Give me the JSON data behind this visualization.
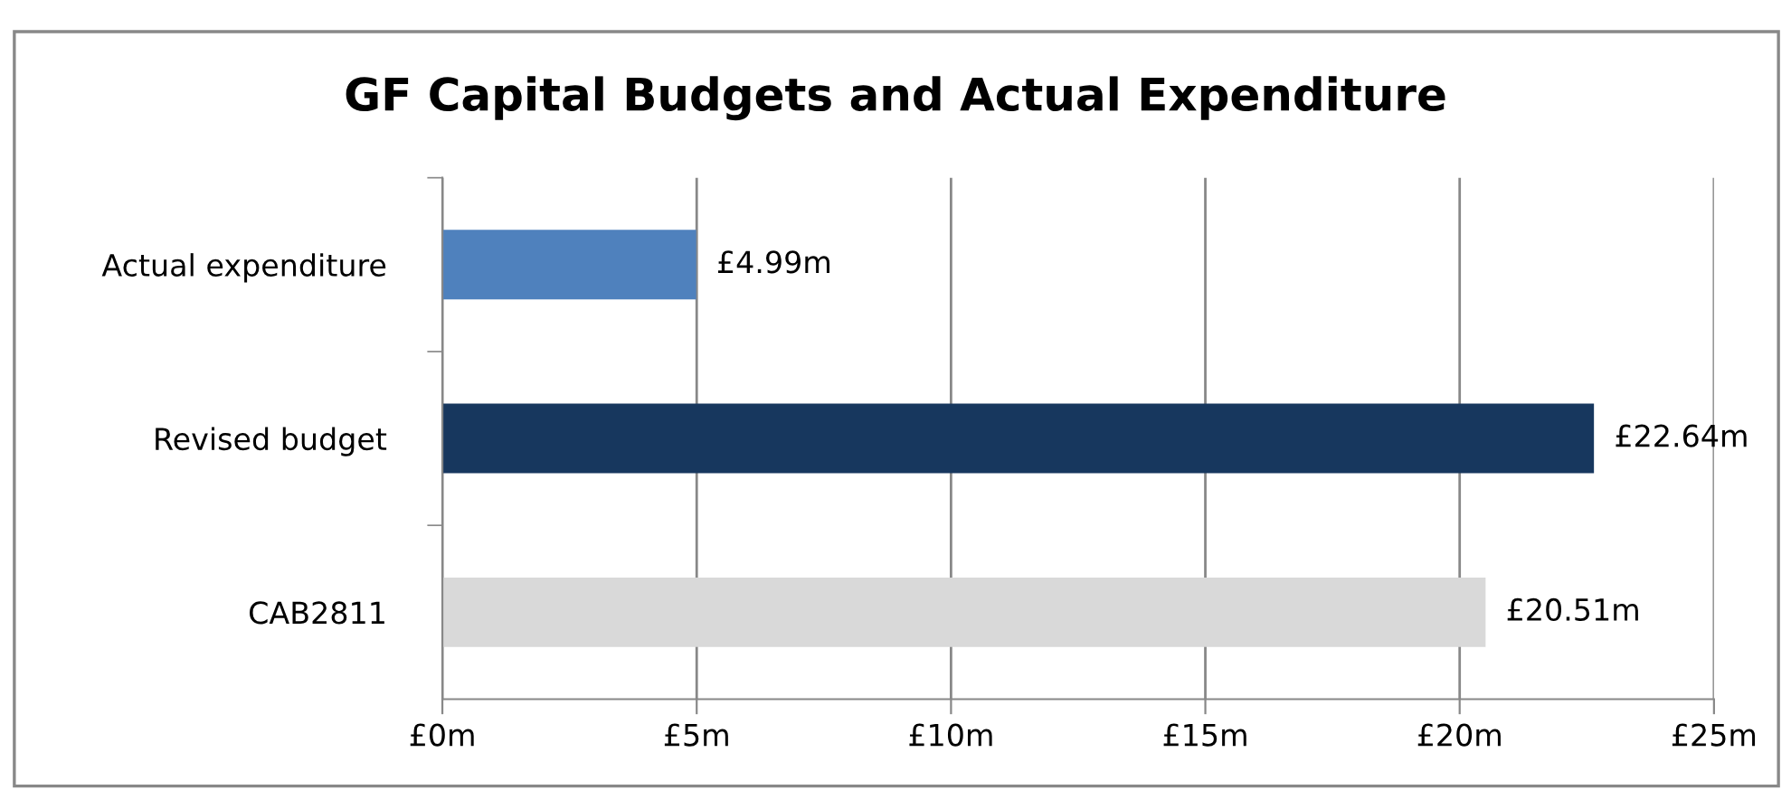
{
  "chart_data": {
    "type": "bar",
    "orientation": "horizontal",
    "title": "GF Capital Budgets and Actual Expenditure",
    "categories": [
      "Actual expenditure",
      "Revised budget",
      "CAB2811"
    ],
    "values": [
      4.99,
      22.64,
      20.51
    ],
    "colors": [
      "#4f81bd",
      "#17375e",
      "#d9d9d9"
    ],
    "value_labels": [
      "£4.99m",
      "£22.64m",
      "£20.51m"
    ],
    "xlim": [
      0,
      25
    ],
    "xticks": [
      {
        "value": 0,
        "label": "£0m"
      },
      {
        "value": 5,
        "label": "£5m"
      },
      {
        "value": 10,
        "label": "£10m"
      },
      {
        "value": 15,
        "label": "£15m"
      },
      {
        "value": 20,
        "label": "£20m"
      },
      {
        "value": 25,
        "label": "£25m"
      }
    ],
    "grid": "x",
    "legend": false
  }
}
